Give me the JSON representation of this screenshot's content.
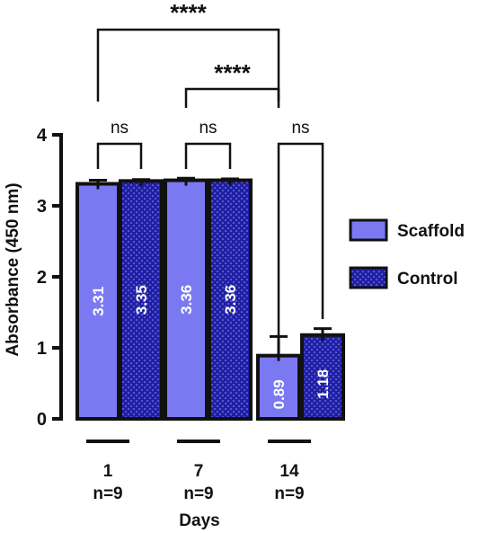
{
  "chart_data": {
    "type": "bar",
    "xlabel": "Days",
    "ylabel": "Absorbance (450 nm)",
    "ylim": [
      0,
      4
    ],
    "yticks": [
      "0",
      "1",
      "2",
      "3",
      "4"
    ],
    "categories": [
      {
        "day": "1",
        "n": "n=9"
      },
      {
        "day": "7",
        "n": "n=9"
      },
      {
        "day": "14",
        "n": "n=9"
      }
    ],
    "series": [
      {
        "name": "Scaffold",
        "values": [
          3.31,
          3.36,
          0.89
        ],
        "errors": [
          0.05,
          0.03,
          0.27
        ],
        "labels": [
          "3.31",
          "3.36",
          "0.89"
        ],
        "color": "#7B79F2",
        "pattern": "solid"
      },
      {
        "name": "Control",
        "values": [
          3.35,
          3.36,
          1.18
        ],
        "errors": [
          0.02,
          0.02,
          0.09
        ],
        "labels": [
          "3.35",
          "3.36",
          "1.18"
        ],
        "color": "#1F1FA8",
        "pattern": "dotted"
      }
    ],
    "legend_position": "right",
    "significance": [
      {
        "label": "ns",
        "between": [
          [
            0,
            0
          ],
          [
            0,
            1
          ]
        ]
      },
      {
        "label": "ns",
        "between": [
          [
            1,
            0
          ],
          [
            1,
            1
          ]
        ]
      },
      {
        "label": "ns",
        "between": [
          [
            2,
            0
          ],
          [
            2,
            1
          ]
        ]
      },
      {
        "label": "****",
        "between": [
          [
            0,
            0
          ],
          [
            2,
            0
          ]
        ]
      },
      {
        "label": "****",
        "between": [
          [
            1,
            0
          ],
          [
            2,
            0
          ]
        ]
      }
    ]
  }
}
